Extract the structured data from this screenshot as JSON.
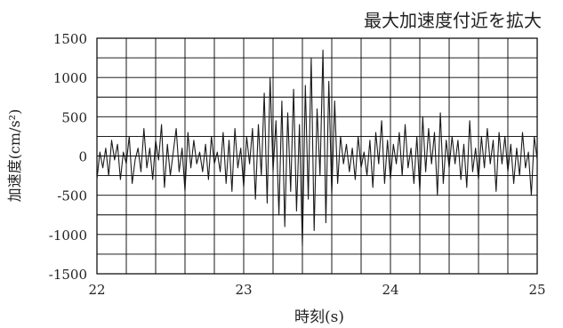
{
  "chart_data": {
    "type": "line",
    "title": "最大加速度付近を拡大",
    "xlabel": "時刻(s)",
    "ylabel": "加速度(cm/s²)",
    "xlim": [
      22,
      25
    ],
    "ylim": [
      -1500,
      1500
    ],
    "x_ticks": [
      22,
      23,
      24,
      25
    ],
    "x_tick_labels": [
      "22",
      "23",
      "24",
      "25"
    ],
    "y_ticks": [
      1500,
      1000,
      500,
      0,
      -500,
      -1000,
      -1500
    ],
    "y_tick_labels": [
      "1500",
      "1000",
      "500",
      "0",
      "-500",
      "-1000",
      "-1500"
    ],
    "x_minor_step": 0.2,
    "y_minor_step": 250,
    "grid": true,
    "series": [
      {
        "color": "#1a1a1a",
        "x": [
          22.0,
          22.02,
          22.04,
          22.06,
          22.08,
          22.1,
          22.12,
          22.14,
          22.16,
          22.18,
          22.2,
          22.22,
          22.24,
          22.26,
          22.28,
          22.3,
          22.32,
          22.34,
          22.36,
          22.38,
          22.4,
          22.42,
          22.44,
          22.46,
          22.48,
          22.5,
          22.52,
          22.54,
          22.56,
          22.58,
          22.6,
          22.62,
          22.64,
          22.66,
          22.68,
          22.7,
          22.72,
          22.74,
          22.76,
          22.78,
          22.8,
          22.82,
          22.84,
          22.86,
          22.88,
          22.9,
          22.92,
          22.94,
          22.96,
          22.98,
          23.0,
          23.02,
          23.04,
          23.06,
          23.08,
          23.1,
          23.12,
          23.14,
          23.16,
          23.18,
          23.2,
          23.22,
          23.24,
          23.26,
          23.28,
          23.3,
          23.32,
          23.34,
          23.36,
          23.38,
          23.4,
          23.42,
          23.44,
          23.46,
          23.48,
          23.5,
          23.52,
          23.54,
          23.56,
          23.58,
          23.6,
          23.62,
          23.64,
          23.66,
          23.68,
          23.7,
          23.72,
          23.74,
          23.76,
          23.78,
          23.8,
          23.82,
          23.84,
          23.86,
          23.88,
          23.9,
          23.92,
          23.94,
          23.96,
          23.98,
          24.0,
          24.02,
          24.04,
          24.06,
          24.08,
          24.1,
          24.12,
          24.14,
          24.16,
          24.18,
          24.2,
          24.22,
          24.24,
          24.26,
          24.28,
          24.3,
          24.32,
          24.34,
          24.36,
          24.38,
          24.4,
          24.42,
          24.44,
          24.46,
          24.48,
          24.5,
          24.52,
          24.54,
          24.56,
          24.58,
          24.6,
          24.62,
          24.64,
          24.66,
          24.68,
          24.7,
          24.72,
          24.74,
          24.76,
          24.78,
          24.8,
          24.82,
          24.84,
          24.86,
          24.88,
          24.9,
          24.92,
          24.94,
          24.96,
          24.98,
          25.0
        ],
        "y": [
          -300,
          50,
          -150,
          100,
          -250,
          200,
          -50,
          150,
          -300,
          50,
          -100,
          250,
          -350,
          -50,
          100,
          -200,
          350,
          -150,
          100,
          -300,
          200,
          -50,
          400,
          -400,
          150,
          -250,
          50,
          350,
          -200,
          100,
          -450,
          300,
          -150,
          200,
          -100,
          50,
          -200,
          150,
          -300,
          250,
          -100,
          50,
          -200,
          300,
          -350,
          200,
          -450,
          350,
          -150,
          100,
          -400,
          250,
          -100,
          350,
          -550,
          400,
          -250,
          800,
          -600,
          1000,
          -200,
          450,
          -750,
          700,
          -900,
          550,
          -450,
          850,
          -700,
          400,
          -1150,
          900,
          -550,
          1250,
          -950,
          600,
          -250,
          1350,
          -850,
          950,
          -500,
          700,
          -350,
          250,
          -100,
          150,
          -200,
          100,
          -300,
          250,
          -150,
          50,
          -250,
          200,
          -400,
          300,
          -100,
          450,
          -350,
          200,
          -300,
          150,
          -100,
          300,
          -250,
          400,
          -150,
          100,
          -350,
          250,
          -450,
          500,
          -200,
          350,
          -100,
          300,
          -500,
          550,
          -350,
          200,
          -150,
          250,
          -100,
          200,
          -300,
          150,
          -400,
          450,
          -200,
          100,
          -300,
          250,
          -150,
          350,
          -100,
          200,
          -450,
          300,
          -100,
          250,
          -200,
          150,
          -350,
          100,
          -250,
          300,
          -150,
          50,
          -500,
          250,
          -50
        ]
      }
    ]
  }
}
